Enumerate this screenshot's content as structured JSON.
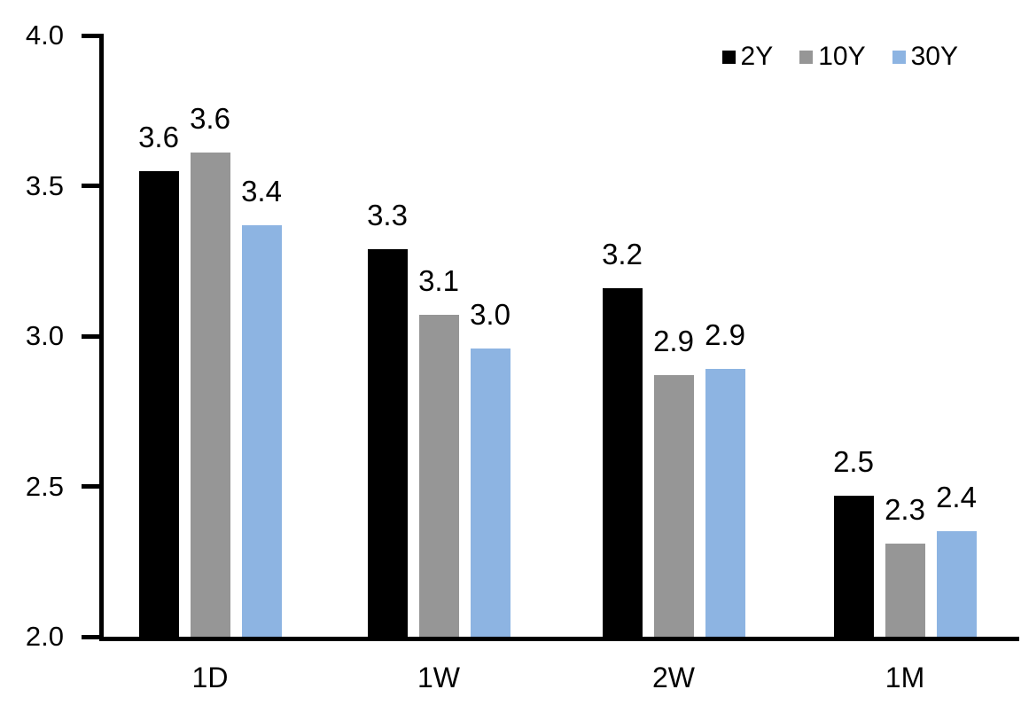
{
  "chart_data": {
    "type": "bar",
    "title": "",
    "categories": [
      "1D",
      "1W",
      "2W",
      "1M"
    ],
    "series": [
      {
        "name": "2Y",
        "color": "#000000",
        "values": [
          3.55,
          3.29,
          3.16,
          2.47
        ],
        "labels": [
          "3.6",
          "3.3",
          "3.2",
          "2.5"
        ]
      },
      {
        "name": "10Y",
        "color": "#969696",
        "values": [
          3.61,
          3.07,
          2.87,
          2.31
        ],
        "labels": [
          "3.6",
          "3.1",
          "2.9",
          "2.3"
        ]
      },
      {
        "name": "30Y",
        "color": "#8DB4E2",
        "values": [
          3.37,
          2.96,
          2.89,
          2.35
        ],
        "labels": [
          "3.4",
          "3.0",
          "2.9",
          "2.4"
        ]
      }
    ],
    "ylim": [
      2.0,
      4.0
    ],
    "yticks": [
      "4.0",
      "3.5",
      "3.0",
      "2.5",
      "2.0"
    ],
    "ytick_values": [
      4.0,
      3.5,
      3.0,
      2.5,
      2.0
    ],
    "xlabel": "",
    "ylabel": "",
    "grid": false,
    "legend_position": "top-right",
    "axis_color": "#000000",
    "background_color": "#FFFFFF",
    "label_color": "#000000"
  }
}
